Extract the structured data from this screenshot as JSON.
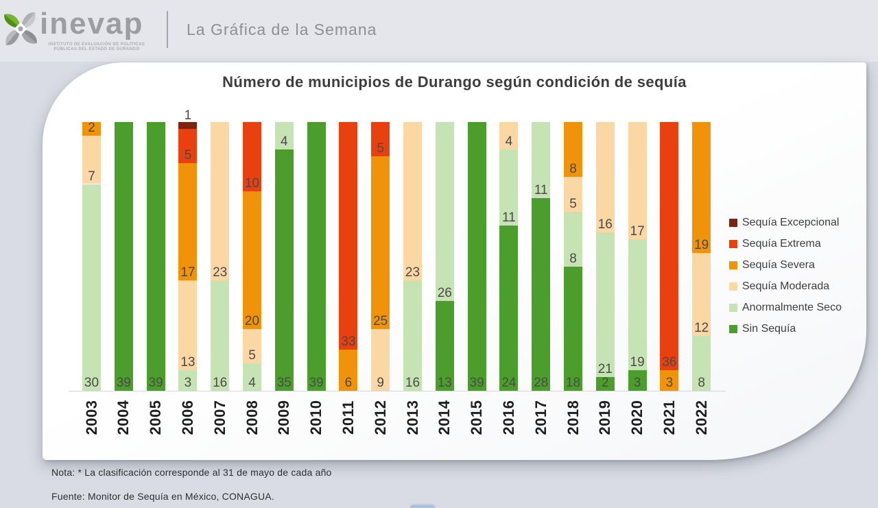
{
  "header": {
    "logo_word": "inevap",
    "logo_caption_line1": "INSTITUTO DE EVALUACIÓN DE POLÍTICAS",
    "logo_caption_line2": "PÚBLICAS DEL ESTADO DE DURANGO",
    "title": "La Gráfica de la Semana"
  },
  "chart_data": {
    "type": "bar",
    "stacked": true,
    "title": "Número de municipios de Durango según condición de sequía",
    "categories": [
      "2003",
      "2004",
      "2005",
      "2006",
      "2007",
      "2008",
      "2009",
      "2010",
      "2011",
      "2012",
      "2013",
      "2014",
      "2015",
      "2016",
      "2017",
      "2018",
      "2019",
      "2020",
      "2021",
      "2022"
    ],
    "series": [
      {
        "name": "Sin Sequía",
        "color": "#4b9e2b",
        "values": [
          0,
          39,
          39,
          0,
          0,
          0,
          35,
          39,
          0,
          0,
          0,
          13,
          39,
          24,
          28,
          18,
          2,
          3,
          0,
          0
        ]
      },
      {
        "name": "Anormalmente Seco",
        "color": "#c5e3b3",
        "values": [
          30,
          0,
          0,
          3,
          16,
          4,
          4,
          0,
          0,
          0,
          16,
          26,
          0,
          11,
          11,
          8,
          21,
          19,
          0,
          8
        ]
      },
      {
        "name": "Sequía Moderada",
        "color": "#fbd7a4",
        "values": [
          7,
          0,
          0,
          13,
          23,
          5,
          0,
          0,
          0,
          9,
          23,
          0,
          0,
          4,
          0,
          5,
          16,
          17,
          0,
          12
        ]
      },
      {
        "name": "Sequía Severa",
        "color": "#f0930a",
        "values": [
          2,
          0,
          0,
          17,
          0,
          20,
          0,
          0,
          6,
          25,
          0,
          0,
          0,
          0,
          0,
          8,
          0,
          0,
          3,
          19
        ]
      },
      {
        "name": "Sequía Extrema",
        "color": "#e8400f",
        "values": [
          0,
          0,
          0,
          5,
          0,
          10,
          0,
          0,
          33,
          5,
          0,
          0,
          0,
          0,
          0,
          0,
          0,
          0,
          36,
          0
        ]
      },
      {
        "name": "Sequía Excepcional",
        "color": "#7c2312",
        "values": [
          0,
          0,
          0,
          1,
          0,
          0,
          0,
          0,
          0,
          0,
          0,
          0,
          0,
          0,
          0,
          0,
          0,
          0,
          0,
          0
        ]
      }
    ],
    "ylim": [
      0,
      39
    ],
    "grid": false,
    "legend_position": "right",
    "legend_order_top_to_bottom": [
      "Sequía Excepcional",
      "Sequía Extrema",
      "Sequía Severa",
      "Sequía Moderada",
      "Anormalmente Seco",
      "Sin Sequía"
    ],
    "value_labels": "inside-base",
    "xlabel": "",
    "ylabel": ""
  },
  "footer": {
    "note": "Nota: * La clasificación corresponde al 31 de mayo de cada año",
    "source": "Fuente: Monitor  de Sequía en México, CONAGUA."
  },
  "colors": {
    "page_background": "#d9dce4",
    "header_background": "#e4e6ec",
    "card_background": "#ffffff",
    "axis_line": "#d6d6d6",
    "value_label_text": "#4a4a4a"
  }
}
